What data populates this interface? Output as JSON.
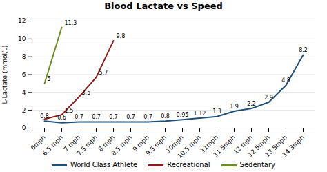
{
  "chart_data": {
    "type": "line",
    "title": "Blood Lactate vs Speed",
    "ylabel": "L-Lactate (mmol/L)",
    "categories": [
      "6mph",
      "6.5 mph",
      "7 mph",
      "7.5 mph",
      "8 mph",
      "8.5 mph",
      "9 mph",
      "9.5 mph",
      "10mph",
      "10.5 mph",
      "11mph",
      "11.5mph",
      "12 mph",
      "12.5mph",
      "13.5mph",
      "14.3mph"
    ],
    "series": [
      {
        "name": "World Class Athlete",
        "color": "#1F4E79",
        "values": [
          0.8,
          0.6,
          0.7,
          0.7,
          0.7,
          0.7,
          0.7,
          0.8,
          0.95,
          1.12,
          1.3,
          1.9,
          2.2,
          2.9,
          4.8,
          8.2
        ]
      },
      {
        "name": "Recreational",
        "color": "#8B1A1A",
        "values": [
          1.0,
          1.5,
          3.5,
          5.7,
          9.8,
          null,
          null,
          null,
          null,
          null,
          null,
          null,
          null,
          null,
          null,
          null
        ],
        "value_labels": [
          null,
          "1.5",
          "3.5",
          "5.7",
          "9.8",
          null,
          null,
          null,
          null,
          null,
          null,
          null,
          null,
          null,
          null,
          null
        ]
      },
      {
        "name": "Sedentary",
        "color": "#6B8E23",
        "values": [
          5,
          11.3,
          null,
          null,
          null,
          null,
          null,
          null,
          null,
          null,
          null,
          null,
          null,
          null,
          null,
          null
        ]
      }
    ],
    "ylim": [
      0,
      12
    ],
    "yticks": [
      0,
      2,
      4,
      6,
      8,
      10,
      12
    ],
    "grid": true,
    "legend": "bottom",
    "data_labels": true
  }
}
